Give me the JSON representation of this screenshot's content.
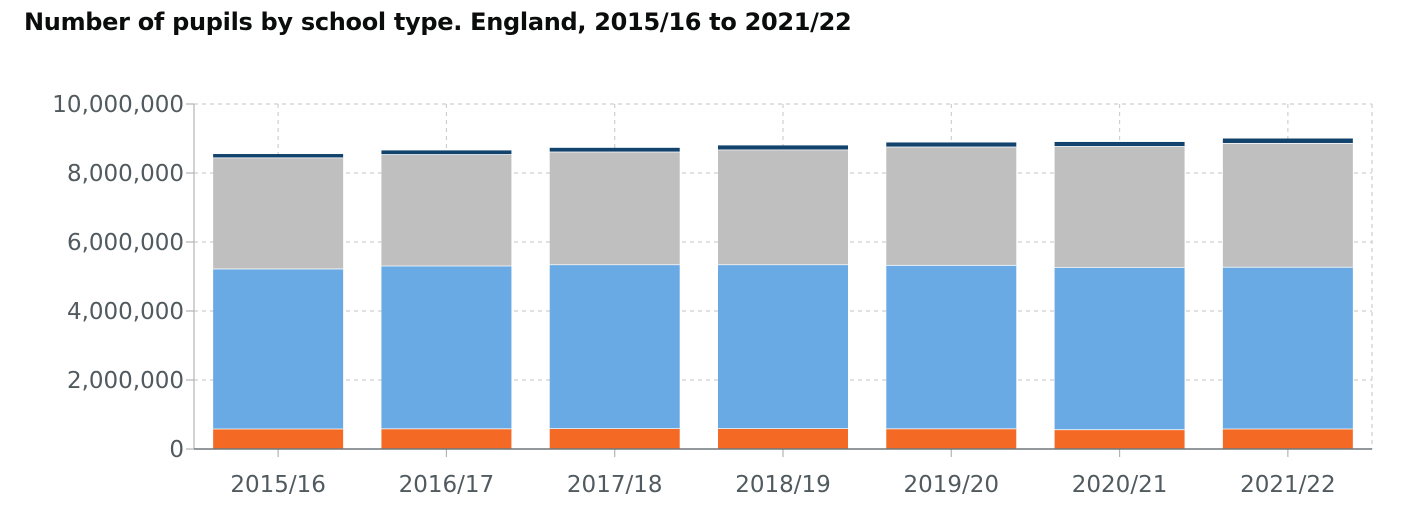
{
  "chart_data": {
    "type": "bar",
    "stacked": true,
    "title": "Number of pupils by school type. England, 2015/16 to 2021/22",
    "categories": [
      "2015/16",
      "2016/17",
      "2017/18",
      "2018/19",
      "2019/20",
      "2020/21",
      "2021/22"
    ],
    "series": [
      {
        "color": "#f46a25",
        "values": [
          590000,
          595000,
          600000,
          600000,
          595000,
          570000,
          590000
        ]
      },
      {
        "color": "#6aaae4",
        "values": [
          4640000,
          4720000,
          4750000,
          4750000,
          4740000,
          4700000,
          4690000
        ]
      },
      {
        "color": "#bfbfbf",
        "values": [
          3220000,
          3230000,
          3270000,
          3330000,
          3430000,
          3510000,
          3590000
        ]
      },
      {
        "color": "#12436d",
        "values": [
          100000,
          110000,
          110000,
          120000,
          120000,
          120000,
          130000
        ]
      }
    ],
    "y_ticks": [
      "0",
      "2,000,000",
      "4,000,000",
      "6,000,000",
      "8,000,000",
      "10,000,000"
    ],
    "ylim": [
      0,
      10000000
    ],
    "xlabel": "",
    "ylabel": "",
    "grid": true
  }
}
